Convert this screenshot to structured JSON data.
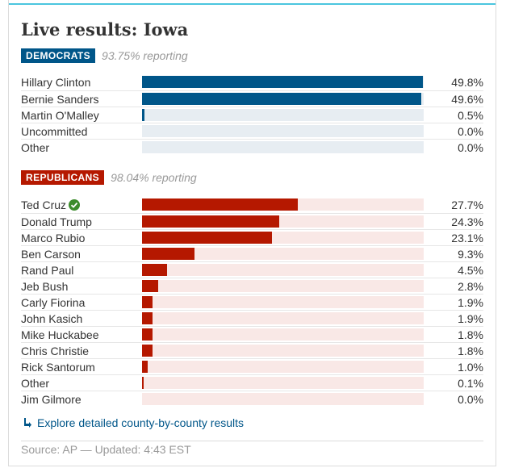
{
  "header": {
    "title": "Live results: Iowa"
  },
  "colors": {
    "accent": "#4bc6df",
    "dem_bar": "#005689",
    "dem_track": "#e7edf2",
    "rep_bar": "#b51800",
    "rep_track": "#f9e8e6",
    "check": "#3c8c2c",
    "link": "#005689"
  },
  "chart_data": [
    {
      "type": "bar",
      "orientation": "horizontal",
      "party": "DEMOCRATS",
      "reporting": "93.75% reporting",
      "xlim": [
        0,
        100
      ],
      "categories": [
        "Hillary Clinton",
        "Bernie Sanders",
        "Martin O'Malley",
        "Uncommitted",
        "Other"
      ],
      "values": [
        49.8,
        49.6,
        0.5,
        0.0,
        0.0
      ],
      "labels": [
        "49.8%",
        "49.6%",
        "0.5%",
        "0.0%",
        "0.0%"
      ]
    },
    {
      "type": "bar",
      "orientation": "horizontal",
      "party": "REPUBLICANS",
      "reporting": "98.04% reporting",
      "xlim": [
        0,
        100
      ],
      "winner": "Ted Cruz",
      "categories": [
        "Ted Cruz",
        "Donald Trump",
        "Marco Rubio",
        "Ben Carson",
        "Rand Paul",
        "Jeb Bush",
        "Carly Fiorina",
        "John Kasich",
        "Mike Huckabee",
        "Chris Christie",
        "Rick Santorum",
        "Other",
        "Jim Gilmore"
      ],
      "values": [
        27.7,
        24.3,
        23.1,
        9.3,
        4.5,
        2.8,
        1.9,
        1.9,
        1.8,
        1.8,
        1.0,
        0.1,
        0.0
      ],
      "labels": [
        "27.7%",
        "24.3%",
        "23.1%",
        "9.3%",
        "4.5%",
        "2.8%",
        "1.9%",
        "1.9%",
        "1.8%",
        "1.8%",
        "1.0%",
        "0.1%",
        "0.0%"
      ]
    }
  ],
  "footer": {
    "explore_link": "Explore detailed county-by-county results",
    "source": "Source: AP — Updated: 4:43 EST"
  }
}
